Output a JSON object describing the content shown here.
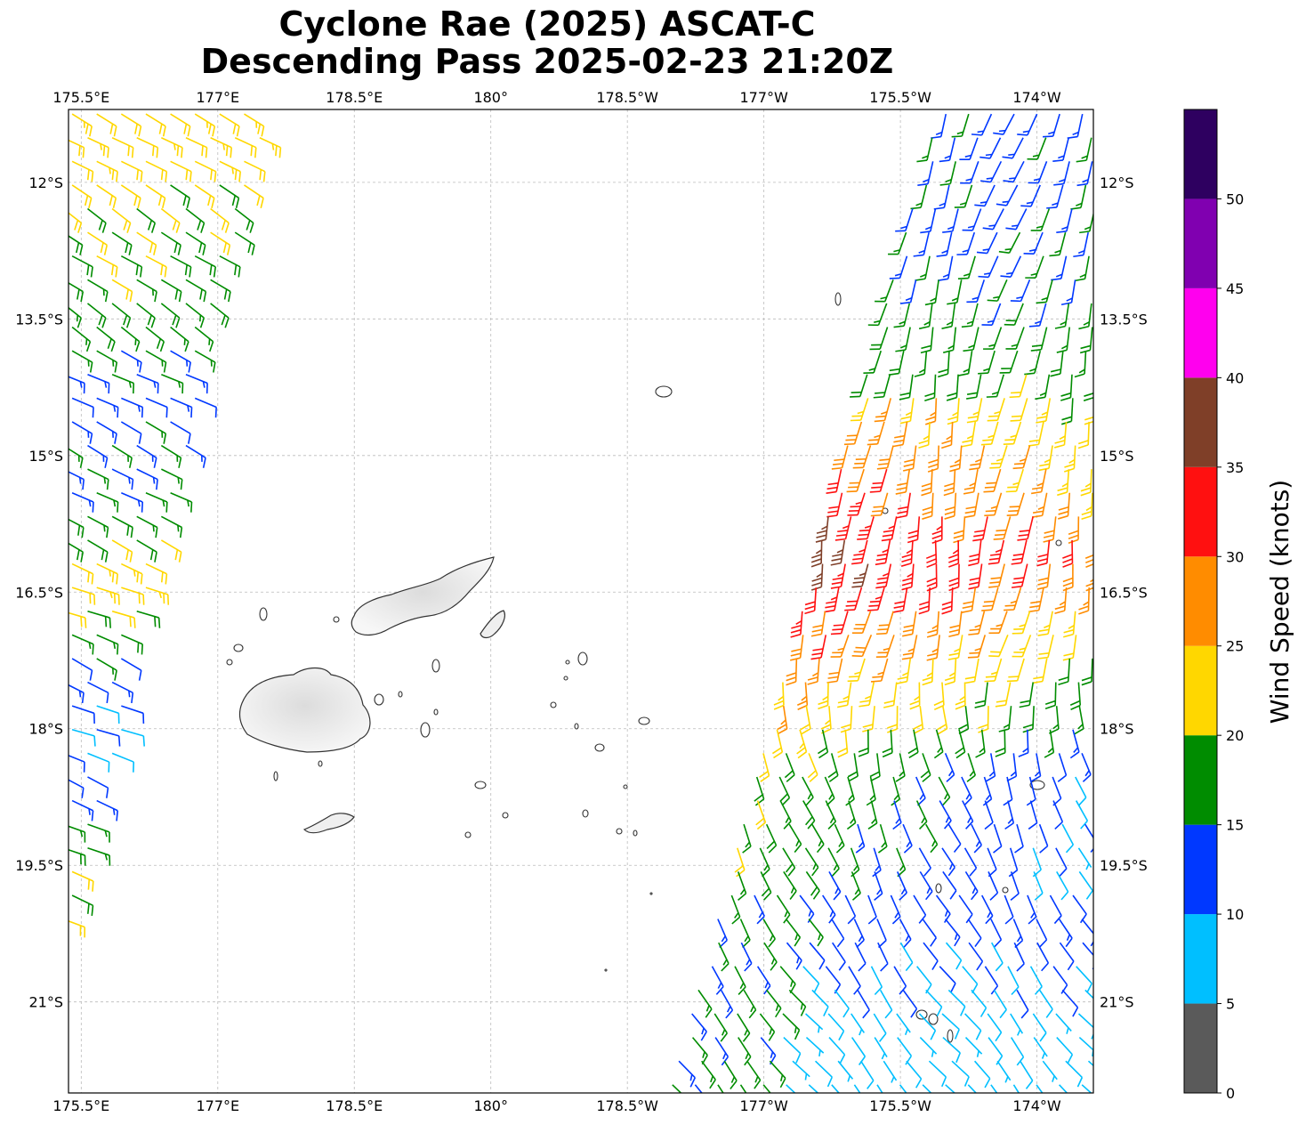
{
  "title_line1": "Cyclone Rae (2025) ASCAT-C",
  "title_line2": "Descending Pass 2025-02-23 21:20Z",
  "map": {
    "lon_ticks": [
      {
        "lon": 175.5,
        "label": "175.5°E"
      },
      {
        "lon": 177.0,
        "label": "177°E"
      },
      {
        "lon": 178.5,
        "label": "178.5°E"
      },
      {
        "lon": 180.0,
        "label": "180°"
      },
      {
        "lon": 181.5,
        "label": "178.5°W"
      },
      {
        "lon": 183.0,
        "label": "177°W"
      },
      {
        "lon": 184.5,
        "label": "175.5°W"
      },
      {
        "lon": 186.0,
        "label": "174°W"
      }
    ],
    "lat_ticks": [
      {
        "lat": -12.0,
        "label": "12°S"
      },
      {
        "lat": -13.5,
        "label": "13.5°S"
      },
      {
        "lat": -15.0,
        "label": "15°S"
      },
      {
        "lat": -16.5,
        "label": "16.5°S"
      },
      {
        "lat": -18.0,
        "label": "18°S"
      },
      {
        "lat": -19.5,
        "label": "19.5°S"
      },
      {
        "lat": -21.0,
        "label": "21°S"
      }
    ],
    "extent": {
      "lon_min": 175.36,
      "lon_max": 186.62,
      "lat_min": -22.0,
      "lat_max": -11.2
    },
    "gridlines": true,
    "land_color": "#efefef",
    "coast_color": "#333333"
  },
  "colorbar": {
    "label": "Wind Speed (knots)",
    "bounds": [
      0,
      5,
      10,
      15,
      20,
      25,
      30,
      35,
      40,
      45,
      50,
      55
    ],
    "tick_values": [
      0,
      5,
      10,
      15,
      20,
      25,
      30,
      35,
      40,
      45,
      50
    ],
    "tick_labels": [
      "0",
      "5",
      "10",
      "15",
      "20",
      "25",
      "30",
      "35",
      "40",
      "45",
      "50"
    ],
    "colors": [
      "#5a5a5a",
      "#00bfff",
      "#0038ff",
      "#008c00",
      "#ffd700",
      "#ff8c00",
      "#ff1010",
      "#7f3f28",
      "#ff00ee",
      "#8000b0",
      "#2e0060"
    ]
  },
  "chart_data": {
    "type": "wind_barbs",
    "units": "knots",
    "swaths": [
      {
        "name": "west",
        "lon_range": [
          175.36,
          177.6
        ],
        "lat_range": [
          -20.1,
          -11.2
        ],
        "samples": [
          {
            "lat": -11.6,
            "speed": 22,
            "dir": 120
          },
          {
            "lat": -13.4,
            "speed": 18,
            "dir": 125
          },
          {
            "lat": -14.4,
            "speed": 13,
            "dir": 115
          },
          {
            "lat": -15.6,
            "speed": 16,
            "dir": 120
          },
          {
            "lat": -16.3,
            "speed": 24,
            "dir": 110
          },
          {
            "lat": -17.3,
            "speed": 13,
            "dir": 115
          },
          {
            "lat": -18.2,
            "speed": 9,
            "dir": 110
          },
          {
            "lat": -19.0,
            "speed": 16,
            "dir": 115
          },
          {
            "lat": -19.8,
            "speed": 21,
            "dir": 110
          }
        ]
      },
      {
        "name": "east",
        "lon_range": [
          182.4,
          186.62
        ],
        "lat_range": [
          -22.0,
          -11.2
        ],
        "samples": [
          {
            "lat": -12.5,
            "speed": 14,
            "dir": 200
          },
          {
            "lat": -14.0,
            "speed": 18,
            "dir": 190
          },
          {
            "lat": -15.5,
            "speed": 27,
            "dir": 190
          },
          {
            "lat": -16.0,
            "speed": 31,
            "dir": 185
          },
          {
            "lat": -17.0,
            "speed": 23,
            "dir": 195
          },
          {
            "lat": -18.5,
            "speed": 13,
            "dir": 160
          },
          {
            "lat": -20.0,
            "speed": 12,
            "dir": 150
          },
          {
            "lat": -21.2,
            "speed": 8,
            "dir": 140
          }
        ]
      }
    ]
  }
}
